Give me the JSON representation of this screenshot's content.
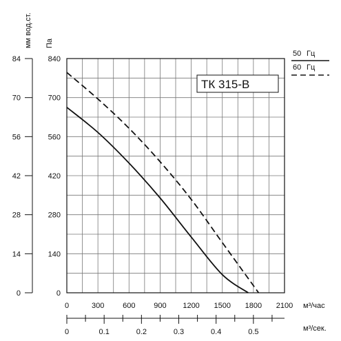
{
  "chart_data": {
    "type": "line",
    "title": "",
    "model_label": "ТК 315-В",
    "xlabel": "м³/час",
    "xlim": [
      0,
      2100
    ],
    "x_ticks": [
      "0",
      "300",
      "600",
      "900",
      "1200",
      "1500",
      "1800",
      "2100"
    ],
    "ylabel": "Па",
    "ylim": [
      0,
      840
    ],
    "y_ticks": [
      "0",
      "140",
      "280",
      "420",
      "560",
      "700",
      "840"
    ],
    "ylabel_secondary": "мм вод.ст.",
    "y_ticks_secondary": [
      "0",
      "14",
      "28",
      "42",
      "56",
      "70",
      "84"
    ],
    "xlabel_secondary": "м³/сек.",
    "x_ticks_secondary": [
      "0",
      "0.1",
      "0.2",
      "0.3",
      "0.4",
      "0.5"
    ],
    "grid": true,
    "legend": {
      "position": "top-right",
      "entries": [
        {
          "label": "50",
          "unit": "Гц",
          "style": "solid"
        },
        {
          "label": "60",
          "unit": "Гц",
          "style": "dashed"
        }
      ]
    },
    "series": [
      {
        "style": "solid",
        "color": "#111111",
        "x": [
          0,
          300,
          600,
          900,
          1200,
          1500,
          1750
        ],
        "y": [
          665,
          575,
          465,
          340,
          200,
          65,
          0
        ]
      },
      {
        "style": "dashed",
        "color": "#111111",
        "x": [
          0,
          300,
          600,
          900,
          1200,
          1500,
          1850
        ],
        "y": [
          790,
          695,
          590,
          470,
          335,
          180,
          0
        ]
      }
    ]
  }
}
